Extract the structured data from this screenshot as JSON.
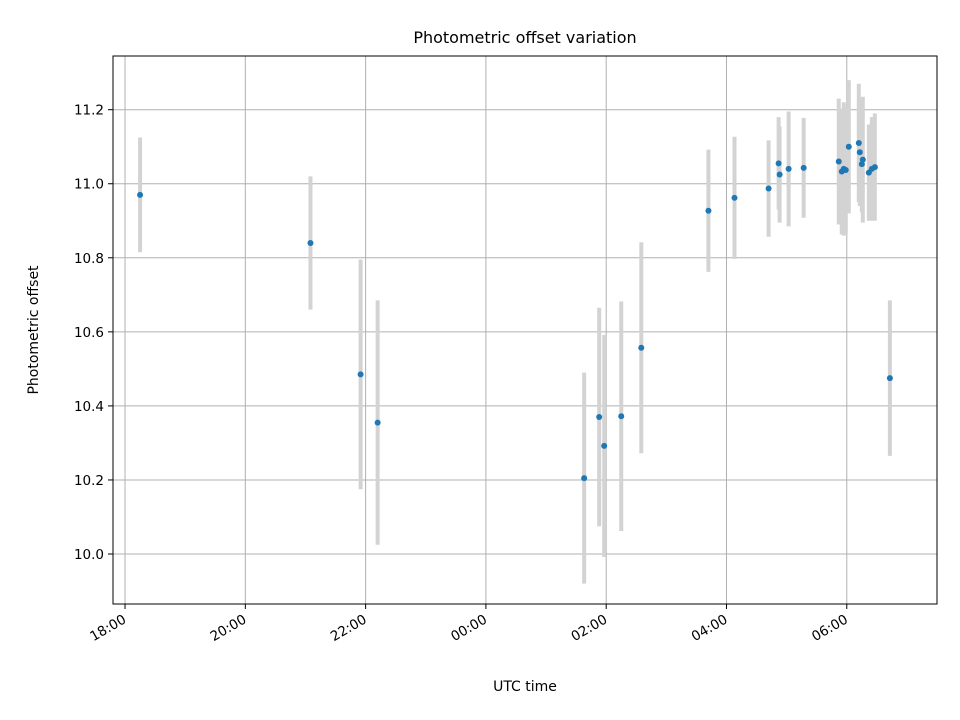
{
  "chart_data": {
    "type": "scatter",
    "title": "Photometric offset variation",
    "xlabel": "UTC time",
    "ylabel": "Photometric offset",
    "x_axis_type": "time",
    "xlim": [
      "17:48",
      "07:30"
    ],
    "ylim": [
      9.865,
      11.345
    ],
    "x_ticks": [
      "18:00",
      "20:00",
      "22:00",
      "00:00",
      "02:00",
      "04:00",
      "06:00"
    ],
    "y_ticks": [
      "10.0",
      "10.2",
      "10.4",
      "10.6",
      "10.8",
      "11.0",
      "11.2"
    ],
    "grid": true,
    "marker_color": "#1f77b4",
    "errorbar_color": "#d3d3d3",
    "points": [
      {
        "x": "18:15",
        "y": 10.97,
        "err": 0.155
      },
      {
        "x": "21:05",
        "y": 10.84,
        "err": 0.18
      },
      {
        "x": "21:55",
        "y": 10.485,
        "err": 0.31
      },
      {
        "x": "22:12",
        "y": 10.355,
        "err": 0.33
      },
      {
        "x": "01:38",
        "y": 10.205,
        "err": 0.285
      },
      {
        "x": "01:53",
        "y": 10.37,
        "err": 0.295
      },
      {
        "x": "01:58",
        "y": 10.292,
        "err": 0.3
      },
      {
        "x": "02:15",
        "y": 10.372,
        "err": 0.31
      },
      {
        "x": "02:35",
        "y": 10.557,
        "err": 0.285
      },
      {
        "x": "03:42",
        "y": 10.927,
        "err": 0.165
      },
      {
        "x": "04:08",
        "y": 10.962,
        "err": 0.165
      },
      {
        "x": "04:42",
        "y": 10.987,
        "err": 0.13
      },
      {
        "x": "04:52",
        "y": 11.055,
        "err": 0.125
      },
      {
        "x": "04:53",
        "y": 11.025,
        "err": 0.13
      },
      {
        "x": "05:02",
        "y": 11.04,
        "err": 0.155
      },
      {
        "x": "05:17",
        "y": 11.043,
        "err": 0.135
      },
      {
        "x": "05:52",
        "y": 11.06,
        "err": 0.17
      },
      {
        "x": "05:55",
        "y": 11.033,
        "err": 0.17
      },
      {
        "x": "05:57",
        "y": 11.04,
        "err": 0.18
      },
      {
        "x": "05:59",
        "y": 11.037,
        "err": 0.17
      },
      {
        "x": "06:02",
        "y": 11.1,
        "err": 0.18
      },
      {
        "x": "06:12",
        "y": 11.11,
        "err": 0.16
      },
      {
        "x": "06:13",
        "y": 11.085,
        "err": 0.145
      },
      {
        "x": "06:15",
        "y": 11.053,
        "err": 0.13
      },
      {
        "x": "06:16",
        "y": 11.065,
        "err": 0.17
      },
      {
        "x": "06:22",
        "y": 11.03,
        "err": 0.13
      },
      {
        "x": "06:25",
        "y": 11.04,
        "err": 0.14
      },
      {
        "x": "06:28",
        "y": 11.045,
        "err": 0.145
      },
      {
        "x": "06:43",
        "y": 10.475,
        "err": 0.21
      }
    ]
  }
}
